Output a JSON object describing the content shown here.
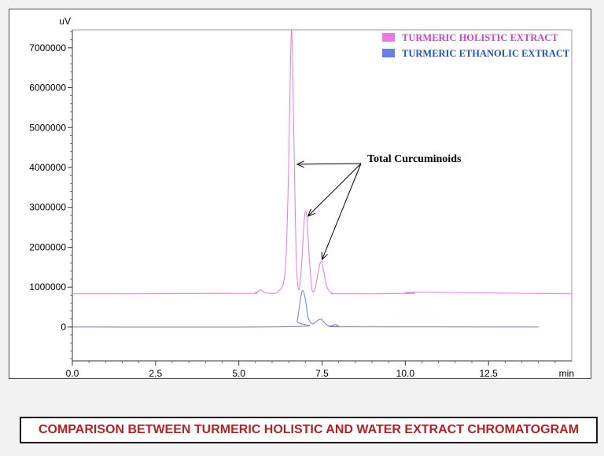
{
  "chart_data": {
    "type": "line",
    "xlabel": "min",
    "ylabel": "uV",
    "xlim": [
      0,
      15
    ],
    "ylim": [
      -850000,
      7450000
    ],
    "x_ticks": [
      "0.0",
      "2.5",
      "5.0",
      "7.5",
      "10.0",
      "12.5"
    ],
    "y_ticks": [
      "0",
      "1000000",
      "2000000",
      "3000000",
      "4000000",
      "5000000",
      "6000000",
      "7000000"
    ],
    "x_tick_values": [
      0,
      2.5,
      5,
      7.5,
      10,
      12.5
    ],
    "y_tick_values": [
      0,
      1000000,
      2000000,
      3000000,
      4000000,
      5000000,
      6000000,
      7000000
    ],
    "legend_position": "top-right",
    "series": [
      {
        "name": "TURMERIC HOLISTIC EXTRACT",
        "color": "#e879e8",
        "label_color": "#cc44cc",
        "x": [
          0,
          5.0,
          5.5,
          5.65,
          5.8,
          6.2,
          6.4,
          6.5,
          6.58,
          6.65,
          6.72,
          6.8,
          6.88,
          6.95,
          7.0,
          7.05,
          7.12,
          7.2,
          7.3,
          7.4,
          7.48,
          7.55,
          7.65,
          7.8,
          8.0,
          10.2,
          10.3,
          15
        ],
        "y": [
          830000,
          840000,
          860000,
          930000,
          860000,
          900000,
          1500000,
          4200000,
          7450000,
          5000000,
          1800000,
          930000,
          1500000,
          2500000,
          2900000,
          2700000,
          1700000,
          930000,
          1000000,
          1450000,
          1650000,
          1400000,
          1000000,
          850000,
          830000,
          840000,
          870000,
          830000
        ]
      },
      {
        "name": "TURMERIC ETHANOLIC EXTRACT",
        "color": "#6b7fe0",
        "label_color": "#1a55c0",
        "x": [
          0,
          6.6,
          6.75,
          6.85,
          6.92,
          7.0,
          7.08,
          7.2,
          7.3,
          7.4,
          7.48,
          7.55,
          7.65,
          7.75,
          7.9,
          8.0,
          8.2,
          14.0
        ],
        "y": [
          0,
          10000,
          150000,
          700000,
          920000,
          700000,
          250000,
          80000,
          120000,
          180000,
          190000,
          130000,
          50000,
          20000,
          60000,
          20000,
          5000,
          0
        ]
      }
    ],
    "annotations": [
      {
        "text": "Total  Curcuminoids",
        "arrows_to": [
          [
            6.75,
            4080000
          ],
          [
            7.08,
            2780000
          ],
          [
            7.5,
            1690000
          ]
        ]
      }
    ]
  },
  "caption": "COMPARISON BETWEEN TURMERIC HOLISTIC AND WATER  EXTRACT CHROMATOGRAM"
}
